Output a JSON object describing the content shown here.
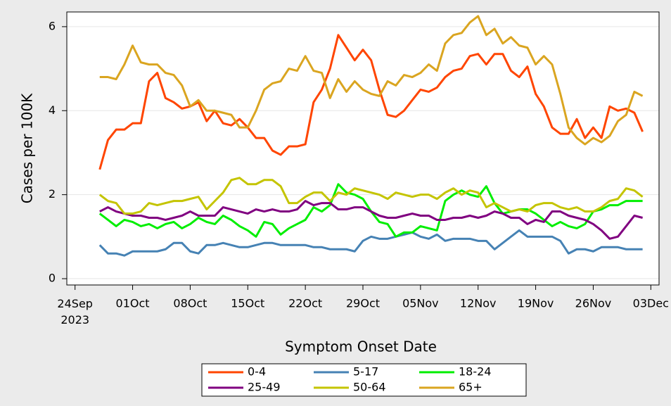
{
  "chart_data": {
    "type": "line",
    "x_label": "Symptom Onset Date",
    "y_label": "Cases per 100K",
    "x": [
      "2023-09-27",
      "2023-09-28",
      "2023-09-29",
      "2023-09-30",
      "2023-10-01",
      "2023-10-02",
      "2023-10-03",
      "2023-10-04",
      "2023-10-05",
      "2023-10-06",
      "2023-10-07",
      "2023-10-08",
      "2023-10-09",
      "2023-10-10",
      "2023-10-11",
      "2023-10-12",
      "2023-10-13",
      "2023-10-14",
      "2023-10-15",
      "2023-10-16",
      "2023-10-17",
      "2023-10-18",
      "2023-10-19",
      "2023-10-20",
      "2023-10-21",
      "2023-10-22",
      "2023-10-23",
      "2023-10-24",
      "2023-10-25",
      "2023-10-26",
      "2023-10-27",
      "2023-10-28",
      "2023-10-29",
      "2023-10-30",
      "2023-10-31",
      "2023-11-01",
      "2023-11-02",
      "2023-11-03",
      "2023-11-04",
      "2023-11-05",
      "2023-11-06",
      "2023-11-07",
      "2023-11-08",
      "2023-11-09",
      "2023-11-10",
      "2023-11-11",
      "2023-11-12",
      "2023-11-13",
      "2023-11-14",
      "2023-11-15",
      "2023-11-16",
      "2023-11-17",
      "2023-11-18",
      "2023-11-19",
      "2023-11-20",
      "2023-11-21",
      "2023-11-22",
      "2023-11-23",
      "2023-11-24",
      "2023-11-25",
      "2023-11-26",
      "2023-11-27",
      "2023-11-28",
      "2023-11-29",
      "2023-11-30",
      "2023-12-01",
      "2023-12-02"
    ],
    "xlim": [
      "2023-09-23",
      "2023-12-04"
    ],
    "xticks": [
      {
        "value": "2023-09-24",
        "label": "24Sep\n2023"
      },
      {
        "value": "2023-10-01",
        "label": "01Oct"
      },
      {
        "value": "2023-10-08",
        "label": "08Oct"
      },
      {
        "value": "2023-10-15",
        "label": "15Oct"
      },
      {
        "value": "2023-10-22",
        "label": "22Oct"
      },
      {
        "value": "2023-10-29",
        "label": "29Oct"
      },
      {
        "value": "2023-11-05",
        "label": "05Nov"
      },
      {
        "value": "2023-11-12",
        "label": "12Nov"
      },
      {
        "value": "2023-11-19",
        "label": "19Nov"
      },
      {
        "value": "2023-11-26",
        "label": "26Nov"
      },
      {
        "value": "2023-12-03",
        "label": "03Dec"
      }
    ],
    "ylim": [
      -0.15,
      6.35
    ],
    "yticks": [
      0,
      2,
      4,
      6
    ],
    "grid": true,
    "series": [
      {
        "name": "0-4",
        "color": "#ff4500",
        "values": [
          2.6,
          3.3,
          3.55,
          3.55,
          3.7,
          3.7,
          4.7,
          4.9,
          4.3,
          4.2,
          4.05,
          4.1,
          4.2,
          3.75,
          4.0,
          3.7,
          3.65,
          3.8,
          3.6,
          3.35,
          3.35,
          3.05,
          2.95,
          3.15,
          3.15,
          3.2,
          4.2,
          4.5,
          5.0,
          5.8,
          5.5,
          5.2,
          5.45,
          5.2,
          4.5,
          3.9,
          3.85,
          4.0,
          4.25,
          4.5,
          4.45,
          4.55,
          4.8,
          4.95,
          5.0,
          5.3,
          5.35,
          5.1,
          5.35,
          5.35,
          4.95,
          4.8,
          5.05,
          4.4,
          4.1,
          3.6,
          3.45,
          3.45,
          3.8,
          3.35,
          3.6,
          3.35,
          4.1,
          4.0,
          4.05,
          3.95,
          3.5
        ]
      },
      {
        "name": "5-17",
        "color": "#4682b4",
        "values": [
          0.8,
          0.6,
          0.6,
          0.55,
          0.65,
          0.65,
          0.65,
          0.65,
          0.7,
          0.85,
          0.85,
          0.65,
          0.6,
          0.8,
          0.8,
          0.85,
          0.8,
          0.75,
          0.75,
          0.8,
          0.85,
          0.85,
          0.8,
          0.8,
          0.8,
          0.8,
          0.75,
          0.75,
          0.7,
          0.7,
          0.7,
          0.65,
          0.9,
          1.0,
          0.95,
          0.95,
          1.0,
          1.05,
          1.1,
          1.0,
          0.95,
          1.05,
          0.9,
          0.95,
          0.95,
          0.95,
          0.9,
          0.9,
          0.7,
          0.85,
          1.0,
          1.15,
          1.0,
          1.0,
          1.0,
          1.0,
          0.9,
          0.6,
          0.7,
          0.7,
          0.65,
          0.75,
          0.75,
          0.75,
          0.7,
          0.7,
          0.7
        ]
      },
      {
        "name": "18-24",
        "color": "#00ee00",
        "values": [
          1.55,
          1.4,
          1.25,
          1.4,
          1.35,
          1.25,
          1.3,
          1.2,
          1.3,
          1.35,
          1.2,
          1.3,
          1.45,
          1.35,
          1.3,
          1.5,
          1.4,
          1.25,
          1.15,
          1.0,
          1.35,
          1.3,
          1.05,
          1.2,
          1.3,
          1.4,
          1.7,
          1.6,
          1.75,
          2.25,
          2.05,
          2.0,
          1.9,
          1.6,
          1.35,
          1.3,
          1.0,
          1.1,
          1.1,
          1.25,
          1.2,
          1.15,
          1.85,
          2.0,
          2.1,
          2.0,
          1.95,
          2.2,
          1.8,
          1.55,
          1.6,
          1.65,
          1.65,
          1.55,
          1.4,
          1.25,
          1.35,
          1.25,
          1.2,
          1.3,
          1.6,
          1.65,
          1.75,
          1.75,
          1.85,
          1.85,
          1.85
        ]
      },
      {
        "name": "25-49",
        "color": "#800080",
        "values": [
          1.6,
          1.7,
          1.6,
          1.55,
          1.5,
          1.5,
          1.45,
          1.45,
          1.4,
          1.45,
          1.5,
          1.6,
          1.5,
          1.5,
          1.5,
          1.7,
          1.65,
          1.6,
          1.55,
          1.65,
          1.6,
          1.65,
          1.6,
          1.6,
          1.65,
          1.85,
          1.75,
          1.8,
          1.8,
          1.65,
          1.65,
          1.7,
          1.7,
          1.6,
          1.5,
          1.45,
          1.45,
          1.5,
          1.55,
          1.5,
          1.5,
          1.4,
          1.4,
          1.45,
          1.45,
          1.5,
          1.45,
          1.5,
          1.6,
          1.55,
          1.45,
          1.45,
          1.3,
          1.4,
          1.35,
          1.6,
          1.6,
          1.5,
          1.45,
          1.4,
          1.3,
          1.15,
          0.95,
          1.0,
          1.25,
          1.5,
          1.45
        ]
      },
      {
        "name": "50-64",
        "color": "#c4c400",
        "values": [
          2.0,
          1.85,
          1.8,
          1.55,
          1.55,
          1.6,
          1.8,
          1.75,
          1.8,
          1.85,
          1.85,
          1.9,
          1.95,
          1.65,
          1.85,
          2.05,
          2.35,
          2.4,
          2.25,
          2.25,
          2.35,
          2.35,
          2.2,
          1.8,
          1.8,
          1.95,
          2.05,
          2.05,
          1.85,
          2.05,
          2.0,
          2.15,
          2.1,
          2.05,
          2.0,
          1.9,
          2.05,
          2.0,
          1.95,
          2.0,
          2.0,
          1.9,
          2.05,
          2.15,
          2.0,
          2.1,
          2.05,
          1.7,
          1.8,
          1.7,
          1.6,
          1.65,
          1.6,
          1.75,
          1.8,
          1.8,
          1.7,
          1.65,
          1.7,
          1.6,
          1.6,
          1.7,
          1.85,
          1.9,
          2.15,
          2.1,
          1.95
        ]
      },
      {
        "name": "65+",
        "color": "#daa520",
        "values": [
          4.8,
          4.8,
          4.75,
          5.1,
          5.55,
          5.15,
          5.1,
          5.1,
          4.9,
          4.85,
          4.6,
          4.1,
          4.25,
          4.0,
          4.0,
          3.95,
          3.9,
          3.6,
          3.6,
          4.0,
          4.5,
          4.65,
          4.7,
          5.0,
          4.95,
          5.3,
          4.95,
          4.9,
          4.3,
          4.75,
          4.45,
          4.7,
          4.5,
          4.4,
          4.35,
          4.7,
          4.6,
          4.85,
          4.8,
          4.9,
          5.1,
          4.95,
          5.6,
          5.8,
          5.85,
          6.1,
          6.25,
          5.8,
          5.95,
          5.6,
          5.75,
          5.55,
          5.5,
          5.1,
          5.3,
          5.1,
          4.4,
          3.6,
          3.35,
          3.2,
          3.35,
          3.25,
          3.4,
          3.75,
          3.9,
          4.45,
          4.35
        ]
      }
    ]
  }
}
